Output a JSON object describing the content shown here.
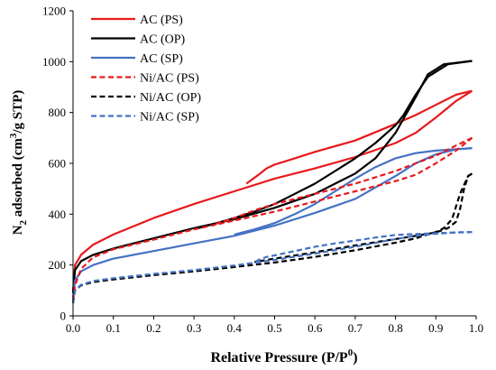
{
  "chart_data": {
    "type": "line",
    "xlabel_main": "Relative Pressure (P/P",
    "xlabel_sup": "0",
    "xlabel_end": ")",
    "ylabel_main": "N",
    "ylabel_sub": "2",
    "ylabel_mid": " adsorbed (cm",
    "ylabel_sup": "3",
    "ylabel_end": "/g STP)",
    "xlim": [
      0,
      1
    ],
    "ylim": [
      0,
      1200
    ],
    "xticks": [
      "0.0",
      "0.1",
      "0.2",
      "0.3",
      "0.4",
      "0.5",
      "0.6",
      "0.7",
      "0.8",
      "0.9",
      "1.0"
    ],
    "yticks": [
      "0",
      "200",
      "400",
      "600",
      "800",
      "1000",
      "1200"
    ],
    "grid": false,
    "legend_placement": "top-left",
    "series": [
      {
        "name": "AC (PS)",
        "color": "#e8191c",
        "dash": "solid",
        "adsorption": [
          [
            0,
            100
          ],
          [
            0.005,
            200
          ],
          [
            0.02,
            240
          ],
          [
            0.05,
            280
          ],
          [
            0.1,
            320
          ],
          [
            0.2,
            385
          ],
          [
            0.3,
            440
          ],
          [
            0.4,
            490
          ],
          [
            0.5,
            540
          ],
          [
            0.6,
            580
          ],
          [
            0.7,
            625
          ],
          [
            0.8,
            680
          ],
          [
            0.85,
            720
          ],
          [
            0.9,
            780
          ],
          [
            0.95,
            845
          ],
          [
            0.99,
            885
          ]
        ],
        "desorption": [
          [
            0.99,
            885
          ],
          [
            0.95,
            870
          ],
          [
            0.9,
            830
          ],
          [
            0.85,
            790
          ],
          [
            0.8,
            755
          ],
          [
            0.7,
            690
          ],
          [
            0.6,
            645
          ],
          [
            0.55,
            620
          ],
          [
            0.5,
            595
          ],
          [
            0.48,
            580
          ],
          [
            0.46,
            555
          ],
          [
            0.43,
            520
          ]
        ]
      },
      {
        "name": "AC (OP)",
        "color": "#000000",
        "dash": "solid",
        "adsorption": [
          [
            0,
            90
          ],
          [
            0.005,
            180
          ],
          [
            0.02,
            215
          ],
          [
            0.05,
            240
          ],
          [
            0.1,
            265
          ],
          [
            0.2,
            305
          ],
          [
            0.3,
            345
          ],
          [
            0.4,
            380
          ],
          [
            0.5,
            425
          ],
          [
            0.6,
            480
          ],
          [
            0.7,
            560
          ],
          [
            0.75,
            620
          ],
          [
            0.8,
            720
          ],
          [
            0.85,
            860
          ],
          [
            0.88,
            950
          ],
          [
            0.92,
            990
          ],
          [
            0.99,
            1003
          ]
        ],
        "desorption": [
          [
            0.99,
            1003
          ],
          [
            0.93,
            990
          ],
          [
            0.88,
            940
          ],
          [
            0.85,
            870
          ],
          [
            0.82,
            790
          ],
          [
            0.8,
            750
          ],
          [
            0.75,
            680
          ],
          [
            0.7,
            620
          ],
          [
            0.65,
            570
          ],
          [
            0.6,
            520
          ],
          [
            0.55,
            480
          ],
          [
            0.5,
            440
          ],
          [
            0.45,
            410
          ],
          [
            0.4,
            385
          ],
          [
            0.35,
            362
          ],
          [
            0.3,
            340
          ]
        ]
      },
      {
        "name": "AC (SP)",
        "color": "#4472c4",
        "dash": "solid",
        "adsorption": [
          [
            0,
            70
          ],
          [
            0.005,
            140
          ],
          [
            0.02,
            175
          ],
          [
            0.05,
            200
          ],
          [
            0.1,
            225
          ],
          [
            0.2,
            255
          ],
          [
            0.3,
            285
          ],
          [
            0.4,
            315
          ],
          [
            0.5,
            355
          ],
          [
            0.6,
            405
          ],
          [
            0.7,
            460
          ],
          [
            0.8,
            550
          ],
          [
            0.85,
            600
          ],
          [
            0.9,
            635
          ],
          [
            0.95,
            655
          ],
          [
            0.99,
            660
          ]
        ],
        "desorption": [
          [
            0.99,
            660
          ],
          [
            0.9,
            650
          ],
          [
            0.85,
            640
          ],
          [
            0.8,
            620
          ],
          [
            0.75,
            585
          ],
          [
            0.7,
            540
          ],
          [
            0.65,
            490
          ],
          [
            0.6,
            440
          ],
          [
            0.55,
            400
          ],
          [
            0.5,
            365
          ],
          [
            0.45,
            340
          ],
          [
            0.4,
            320
          ]
        ]
      },
      {
        "name": "Ni/AC (PS)",
        "color": "#e8191c",
        "dash": "dashed",
        "adsorption": [
          [
            0,
            60
          ],
          [
            0.005,
            120
          ],
          [
            0.02,
            185
          ],
          [
            0.05,
            230
          ],
          [
            0.1,
            262
          ],
          [
            0.2,
            300
          ],
          [
            0.3,
            340
          ],
          [
            0.4,
            375
          ],
          [
            0.5,
            410
          ],
          [
            0.6,
            450
          ],
          [
            0.7,
            490
          ],
          [
            0.8,
            530
          ],
          [
            0.85,
            555
          ],
          [
            0.9,
            600
          ],
          [
            0.95,
            650
          ],
          [
            0.99,
            700
          ]
        ],
        "desorption": [
          [
            0.99,
            700
          ],
          [
            0.95,
            670
          ],
          [
            0.9,
            630
          ],
          [
            0.85,
            600
          ],
          [
            0.8,
            570
          ],
          [
            0.7,
            520
          ],
          [
            0.6,
            480
          ],
          [
            0.5,
            440
          ],
          [
            0.45,
            415
          ],
          [
            0.4,
            385
          ],
          [
            0.35,
            360
          ]
        ]
      },
      {
        "name": "Ni/AC (OP)",
        "color": "#000000",
        "dash": "dashed",
        "adsorption": [
          [
            0,
            50
          ],
          [
            0.005,
            100
          ],
          [
            0.02,
            120
          ],
          [
            0.05,
            133
          ],
          [
            0.1,
            143
          ],
          [
            0.2,
            160
          ],
          [
            0.3,
            175
          ],
          [
            0.4,
            192
          ],
          [
            0.5,
            210
          ],
          [
            0.6,
            232
          ],
          [
            0.7,
            258
          ],
          [
            0.8,
            288
          ],
          [
            0.85,
            305
          ],
          [
            0.9,
            330
          ],
          [
            0.92,
            345
          ],
          [
            0.94,
            380
          ],
          [
            0.96,
            480
          ],
          [
            0.98,
            550
          ],
          [
            0.99,
            560
          ]
        ],
        "desorption": [
          [
            0.99,
            560
          ],
          [
            0.98,
            550
          ],
          [
            0.97,
            500
          ],
          [
            0.96,
            420
          ],
          [
            0.95,
            370
          ],
          [
            0.93,
            345
          ],
          [
            0.9,
            328
          ],
          [
            0.85,
            315
          ],
          [
            0.8,
            302
          ],
          [
            0.7,
            277
          ],
          [
            0.6,
            250
          ],
          [
            0.5,
            225
          ],
          [
            0.45,
            212
          ]
        ]
      },
      {
        "name": "Ni/AC (SP)",
        "color": "#4472c4",
        "dash": "dashed",
        "adsorption": [
          [
            0,
            50
          ],
          [
            0.005,
            100
          ],
          [
            0.02,
            122
          ],
          [
            0.05,
            137
          ],
          [
            0.1,
            148
          ],
          [
            0.2,
            165
          ],
          [
            0.3,
            180
          ],
          [
            0.4,
            198
          ],
          [
            0.5,
            220
          ],
          [
            0.6,
            245
          ],
          [
            0.7,
            272
          ],
          [
            0.8,
            302
          ],
          [
            0.85,
            315
          ],
          [
            0.9,
            323
          ],
          [
            0.95,
            328
          ],
          [
            0.99,
            330
          ]
        ],
        "desorption": [
          [
            0.99,
            330
          ],
          [
            0.95,
            328
          ],
          [
            0.9,
            325
          ],
          [
            0.85,
            322
          ],
          [
            0.8,
            318
          ],
          [
            0.75,
            308
          ],
          [
            0.7,
            296
          ],
          [
            0.65,
            285
          ],
          [
            0.6,
            272
          ],
          [
            0.55,
            255
          ],
          [
            0.5,
            238
          ],
          [
            0.48,
            232
          ],
          [
            0.46,
            220
          ],
          [
            0.45,
            210
          ]
        ]
      }
    ]
  }
}
